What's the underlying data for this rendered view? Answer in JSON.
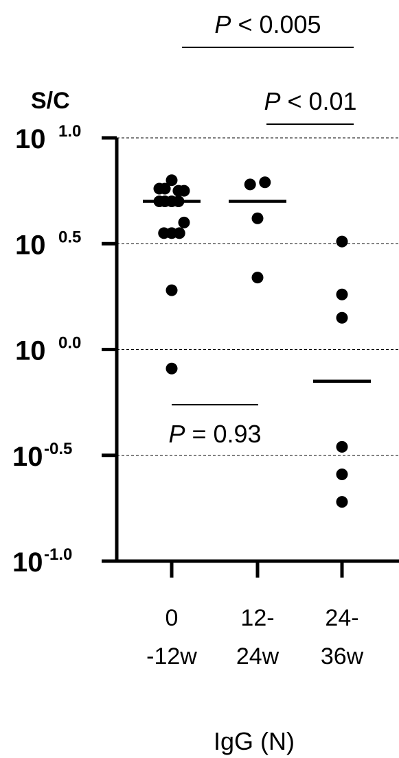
{
  "chart_data": {
    "type": "scatter",
    "ylabel": "S/C",
    "xlabel": "IgG (N)",
    "y_scale": "log10",
    "ylim": [
      -1.0,
      1.0
    ],
    "grid": "dashed horizontal at major ticks",
    "yticks": [
      {
        "value": 1.0,
        "base": "10",
        "exp": "1.0"
      },
      {
        "value": 0.5,
        "base": "10",
        "exp": "0.5"
      },
      {
        "value": 0.0,
        "base": "10",
        "exp": "0.0"
      },
      {
        "value": -0.5,
        "base": "10",
        "exp": "-0.5"
      },
      {
        "value": -1.0,
        "base": "10",
        "exp": "-1.0"
      }
    ],
    "categories": [
      {
        "line1": "0",
        "line2": "-12w"
      },
      {
        "line1": "12-",
        "line2": "24w"
      },
      {
        "line1": "24-",
        "line2": "36w"
      }
    ],
    "series": [
      {
        "category_index": 0,
        "mean_log": 0.7,
        "points": [
          {
            "dx": -0.4,
            "y": 0.76
          },
          {
            "dx": -0.22,
            "y": 0.76
          },
          {
            "dx": 0.0,
            "y": 0.8
          },
          {
            "dx": 0.22,
            "y": 0.75
          },
          {
            "dx": 0.4,
            "y": 0.75
          },
          {
            "dx": -0.4,
            "y": 0.7
          },
          {
            "dx": -0.22,
            "y": 0.7
          },
          {
            "dx": 0.0,
            "y": 0.7
          },
          {
            "dx": 0.22,
            "y": 0.7
          },
          {
            "dx": 0.4,
            "y": 0.6
          },
          {
            "dx": -0.25,
            "y": 0.55
          },
          {
            "dx": 0.0,
            "y": 0.55
          },
          {
            "dx": 0.25,
            "y": 0.55
          },
          {
            "dx": 0.0,
            "y": 0.28
          },
          {
            "dx": 0.0,
            "y": -0.09
          }
        ]
      },
      {
        "category_index": 1,
        "mean_log": 0.7,
        "points": [
          {
            "dx": -0.24,
            "y": 0.78
          },
          {
            "dx": 0.24,
            "y": 0.79
          },
          {
            "dx": 0.0,
            "y": 0.62
          },
          {
            "dx": 0.0,
            "y": 0.34
          }
        ]
      },
      {
        "category_index": 2,
        "mean_log": -0.15,
        "points": [
          {
            "dx": 0.0,
            "y": 0.51
          },
          {
            "dx": 0.0,
            "y": 0.26
          },
          {
            "dx": 0.0,
            "y": 0.15
          },
          {
            "dx": 0.0,
            "y": -0.46
          },
          {
            "dx": 0.0,
            "y": -0.59
          },
          {
            "dx": 0.0,
            "y": -0.72
          }
        ]
      }
    ],
    "annotations": [
      {
        "from": 0,
        "to": 2,
        "position": "top",
        "italic": "P",
        "rest": " < 0.005"
      },
      {
        "from": 1,
        "to": 2,
        "position": "upper",
        "italic": "P",
        "rest": " < 0.01"
      },
      {
        "from": 0,
        "to": 1,
        "position": "inside-bottom",
        "italic": "P",
        "rest": " = 0.93"
      }
    ]
  }
}
